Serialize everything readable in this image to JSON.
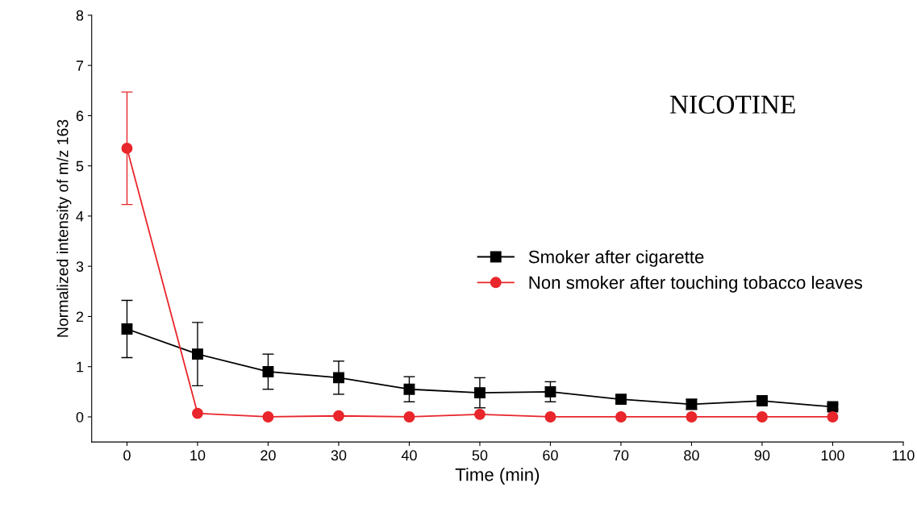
{
  "chart_data": {
    "type": "line",
    "xlabel": "Time (min)",
    "ylabel": "Normalized intensity of m/z 163",
    "x": [
      0,
      10,
      20,
      30,
      40,
      50,
      60,
      70,
      80,
      90,
      100
    ],
    "series": [
      {
        "name": "Smoker after cigarette",
        "color": "#000000",
        "marker": "square",
        "values": [
          1.75,
          1.25,
          0.9,
          0.78,
          0.55,
          0.48,
          0.5,
          0.35,
          0.25,
          0.32,
          0.2
        ],
        "errors": [
          0.57,
          0.63,
          0.35,
          0.33,
          0.25,
          0.3,
          0.2,
          0.08,
          0.1,
          0.05,
          0.05
        ]
      },
      {
        "name": "Non smoker after touching tobacco leaves",
        "color": "#e8262b",
        "marker": "circle",
        "values": [
          5.35,
          0.07,
          0,
          0.02,
          0,
          0.05,
          0,
          0,
          0,
          0,
          0
        ],
        "errors": [
          1.12,
          null,
          null,
          null,
          null,
          null,
          null,
          null,
          null,
          null,
          null
        ]
      }
    ],
    "xlim": [
      -5,
      110
    ],
    "xticks": [
      0,
      10,
      20,
      30,
      40,
      50,
      60,
      70,
      80,
      90,
      100,
      110
    ],
    "ylim": [
      -0.5,
      8
    ],
    "yticks": [
      0,
      1,
      2,
      3,
      4,
      5,
      6,
      7,
      8
    ],
    "grid": false,
    "legend": "center right",
    "line_style": "solid",
    "annotations": [
      "NICOTINE"
    ]
  }
}
